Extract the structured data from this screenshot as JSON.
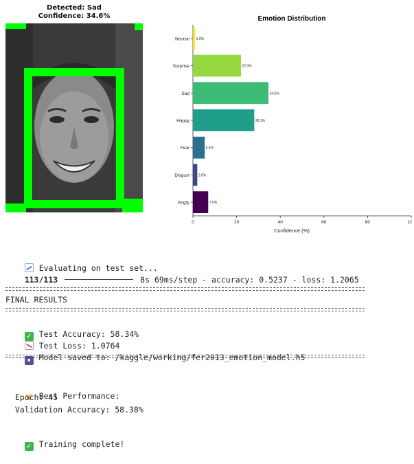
{
  "face_panel": {
    "title_line1": "Detected: Sad",
    "title_line2": "Confidence: 34.6%"
  },
  "chart_data": {
    "type": "bar",
    "orientation": "horizontal",
    "title": "Emotion Distribution",
    "xlabel": "Confidence (%)",
    "ylabel": "",
    "xlim": [
      0,
      100
    ],
    "xticks": [
      "0",
      "20",
      "40",
      "60",
      "80",
      "100"
    ],
    "grid": false,
    "categories": [
      "Neutral",
      "Surprise",
      "Sad",
      "Happy",
      "Fear",
      "Disgust",
      "Angry"
    ],
    "values": [
      1.0,
      22.0,
      34.6,
      28.1,
      5.4,
      2.0,
      7.0
    ],
    "value_labels": [
      "1.0%",
      "22.0%",
      "34.6%",
      "28.1%",
      "5.4%",
      "2.0%",
      "7.0%"
    ],
    "colors": [
      "#fde725",
      "#95d840",
      "#3cbb75",
      "#1f9e89",
      "#2d708e",
      "#404688",
      "#440154"
    ]
  },
  "console": {
    "eval_line": "Evaluating on test set...",
    "progress_count": "113/113",
    "progress_stats": "8s 69ms/step - accuracy: 0.5237 - loss: 1.2065",
    "separator": "",
    "final_results": "FINAL RESULTS",
    "test_accuracy": "Test Accuracy: 58.34%",
    "test_loss": "Test Loss: 1.0764",
    "model_saved": "Model saved to: /kaggle/working/fer2013_emotion_model.h5",
    "best_performance": "Best Performance:",
    "epoch": "  Epoch: 45",
    "val_accuracy": "  Validation Accuracy: 58.38%",
    "training_complete": "Training complete!"
  },
  "icons": {
    "eval": "chart-increasing-icon",
    "accuracy": "check-mark-icon",
    "loss": "chart-decreasing-icon",
    "save": "floppy-disk-icon",
    "best": "trophy-icon",
    "complete": "check-mark-icon"
  }
}
